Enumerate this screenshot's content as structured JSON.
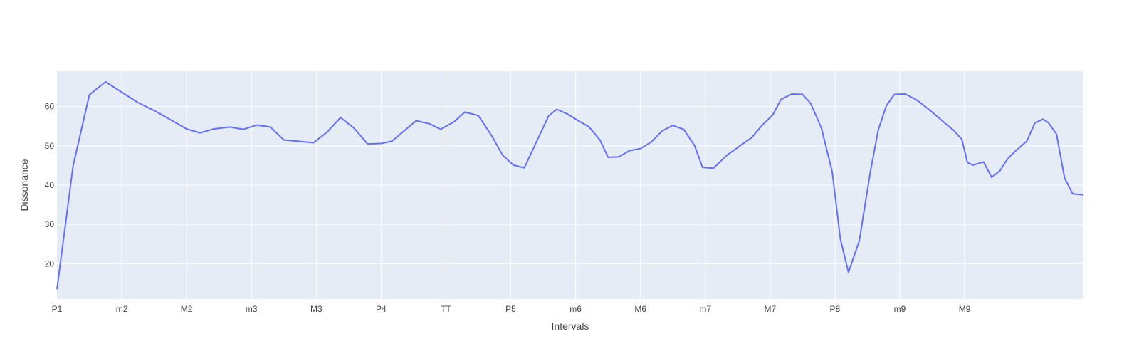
{
  "chart_data": {
    "type": "line",
    "title": "",
    "xlabel": "Intervals",
    "ylabel": "Dissonance",
    "xlim": [
      0,
      190
    ],
    "ylim": [
      11,
      69
    ],
    "grid": true,
    "x_ticks": [
      {
        "value": 0,
        "label": "P1"
      },
      {
        "value": 12,
        "label": "m2"
      },
      {
        "value": 24,
        "label": "M2"
      },
      {
        "value": 36,
        "label": "m3"
      },
      {
        "value": 48,
        "label": "M3"
      },
      {
        "value": 60,
        "label": "P4"
      },
      {
        "value": 72,
        "label": "TT"
      },
      {
        "value": 84,
        "label": "P5"
      },
      {
        "value": 96,
        "label": "m6"
      },
      {
        "value": 108,
        "label": "M6"
      },
      {
        "value": 120,
        "label": "m7"
      },
      {
        "value": 132,
        "label": "M7"
      },
      {
        "value": 144,
        "label": "P8"
      },
      {
        "value": 156,
        "label": "m9"
      },
      {
        "value": 168,
        "label": "M9"
      }
    ],
    "y_ticks": [
      20,
      30,
      40,
      50,
      60
    ],
    "colors": {
      "line": "#636efa",
      "plot_bg": "#e5ecf6",
      "grid": "#ffffff",
      "text": "#444444"
    },
    "series": [
      {
        "x": [
          0,
          3,
          6,
          9,
          15,
          18,
          24,
          26.5,
          29,
          32,
          34.5,
          37,
          39.5,
          42,
          47.5,
          50,
          52.5,
          55,
          57.5,
          60,
          62,
          64.5,
          66.5,
          69,
          71,
          73.5,
          75.5,
          78,
          80.5,
          82.5,
          84.5,
          86.5,
          91,
          92.5,
          94.5,
          96.5,
          98.5,
          100.5,
          102,
          104,
          106,
          108,
          110,
          112,
          114,
          116,
          118,
          119.5,
          121.5,
          124,
          126.5,
          128.5,
          130.5,
          132.5,
          134,
          136,
          138,
          139.5,
          141.5,
          143.5,
          145,
          146.5,
          148.5,
          150.5,
          152,
          153.5,
          155,
          157,
          159,
          161,
          163,
          164.5,
          166,
          167.5,
          168.5,
          169.5,
          171.5,
          173,
          174.5,
          176,
          177.5,
          179.5,
          181,
          182.5,
          183.5,
          185,
          186.5,
          188,
          190
        ],
        "y": [
          13.5,
          45,
          63,
          66.3,
          61,
          59,
          54.3,
          53.3,
          54.3,
          54.8,
          54.2,
          55.3,
          54.8,
          51.5,
          50.8,
          53.5,
          57.2,
          54.5,
          50.5,
          50.6,
          51.2,
          54.1,
          56.4,
          55.6,
          54.2,
          56.1,
          58.6,
          57.7,
          52.5,
          47.6,
          45.1,
          44.4,
          57.6,
          59.3,
          58.1,
          56.4,
          54.8,
          51.5,
          47.1,
          47.2,
          48.8,
          49.3,
          51,
          53.8,
          55.2,
          54.2,
          50.1,
          44.5,
          44.3,
          47.6,
          50.1,
          52,
          55.2,
          57.9,
          61.8,
          63.2,
          63.1,
          60.8,
          54.5,
          43.3,
          26.3,
          17.8,
          25.8,
          43,
          54,
          60.2,
          63.1,
          63.2,
          61.8,
          59.7,
          57.4,
          55.6,
          53.9,
          51.6,
          45.8,
          45.1,
          45.9,
          42,
          43.6,
          46.8,
          48.8,
          51.2,
          55.8,
          56.8,
          55.9,
          53,
          41.8,
          37.8,
          37.5
        ]
      }
    ]
  }
}
